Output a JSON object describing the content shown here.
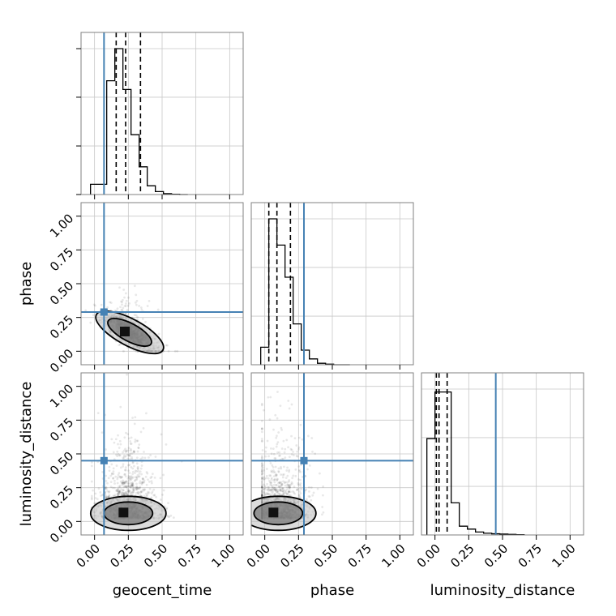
{
  "chart_data": {
    "type": "corner",
    "parameters": [
      "geocent_time",
      "phase",
      "luminosity_distance"
    ],
    "axis_range": [
      -0.1,
      1.1
    ],
    "tick_values": [
      0.0,
      0.25,
      0.5,
      0.75,
      1.0
    ],
    "tick_labels": [
      "0.00",
      "0.25",
      "0.50",
      "0.75",
      "1.00"
    ],
    "grid": true,
    "truths": {
      "geocent_time": 0.07,
      "phase": 0.29,
      "luminosity_distance": 0.45
    },
    "truth_color": "#4682b4",
    "hist_color": "#000000",
    "marginals": [
      {
        "parameter": "geocent_time",
        "bin_edges": [
          -0.03,
          0.03,
          0.09,
          0.15,
          0.21,
          0.27,
          0.33,
          0.39,
          0.45,
          0.51,
          0.57,
          0.63,
          0.69
        ],
        "counts": [
          0.07,
          0.07,
          0.78,
          1.0,
          0.72,
          0.41,
          0.19,
          0.06,
          0.02,
          0.006,
          0.002,
          0.0
        ],
        "quantiles": [
          0.16,
          0.23,
          0.34
        ]
      },
      {
        "parameter": "phase",
        "bin_edges": [
          -0.03,
          0.03,
          0.09,
          0.15,
          0.21,
          0.27,
          0.33,
          0.39,
          0.45,
          0.51,
          0.57,
          0.63
        ],
        "counts": [
          0.12,
          1.0,
          0.82,
          0.6,
          0.28,
          0.1,
          0.04,
          0.01,
          0.004,
          0.0,
          0.0
        ],
        "quantiles": [
          0.03,
          0.09,
          0.19
        ]
      },
      {
        "parameter": "luminosity_distance",
        "bin_edges": [
          -0.06,
          0.0,
          0.06,
          0.12,
          0.18,
          0.24,
          0.3,
          0.36,
          0.42,
          0.48,
          0.54,
          0.6,
          0.66
        ],
        "counts": [
          0.66,
          0.98,
          0.98,
          0.22,
          0.06,
          0.04,
          0.02,
          0.012,
          0.008,
          0.006,
          0.004,
          0.002
        ],
        "quantiles": [
          0.01,
          0.03,
          0.09
        ]
      }
    ],
    "joints": [
      {
        "x": "geocent_time",
        "y": "phase",
        "center": [
          0.26,
          0.14
        ],
        "spread": [
          0.09,
          0.07
        ],
        "correlation": -0.75
      },
      {
        "x": "geocent_time",
        "y": "luminosity_distance",
        "center": [
          0.25,
          0.06
        ],
        "spread": [
          0.09,
          0.14
        ],
        "correlation": 0.05
      },
      {
        "x": "phase",
        "y": "luminosity_distance",
        "center": [
          0.1,
          0.06
        ],
        "spread": [
          0.09,
          0.14
        ],
        "correlation": 0.05
      }
    ]
  }
}
